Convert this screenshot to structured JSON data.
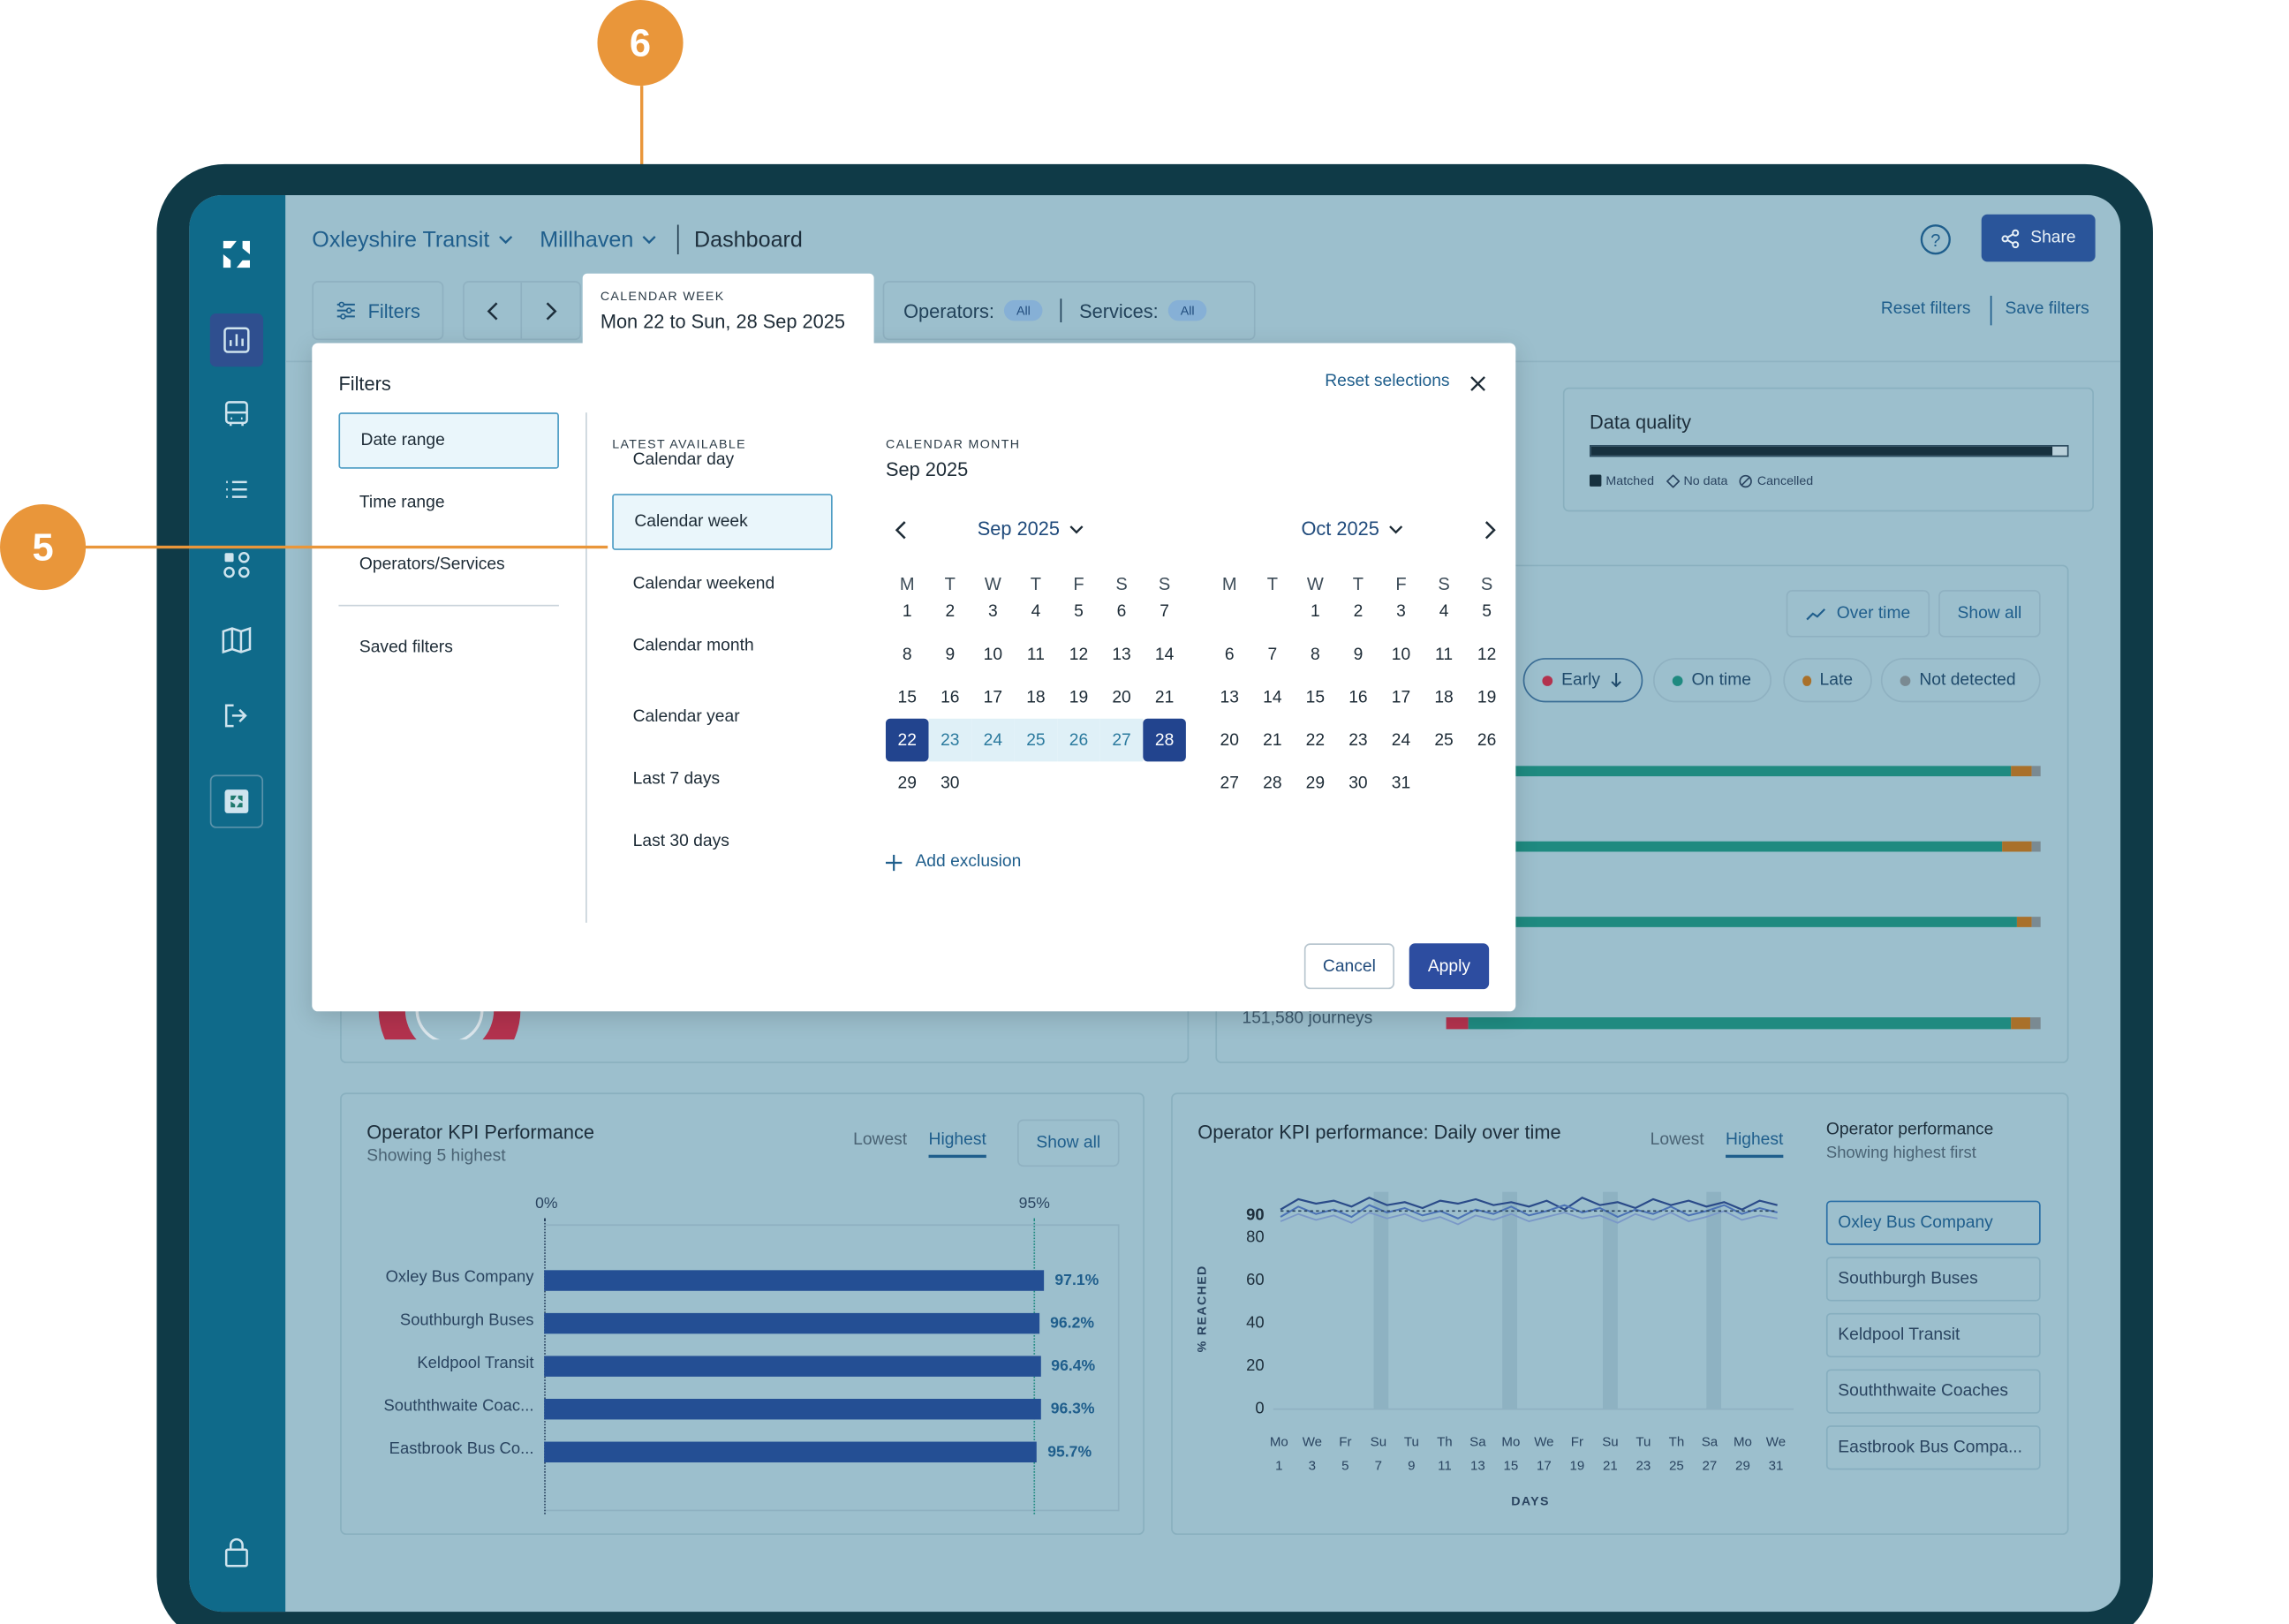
{
  "callouts": {
    "six": "6",
    "five": "5"
  },
  "header": {
    "org": "Oxleyshire Transit",
    "region": "Millhaven",
    "page": "Dashboard",
    "share": "Share"
  },
  "toolbar": {
    "filters": "Filters",
    "operators_label": "Operators:",
    "operators_val": "All",
    "services_label": "Services:",
    "services_val": "All",
    "reset": "Reset filters",
    "save": "Save filters"
  },
  "date_tab": {
    "caption": "CALENDAR WEEK",
    "value": "Mon 22 to Sun, 28 Sep 2025"
  },
  "modal": {
    "title": "Filters",
    "reset": "Reset selections",
    "left_tabs": [
      "Date range",
      "Time range",
      "Operators/Services"
    ],
    "saved": "Saved filters",
    "latest_caption": "LATEST AVAILABLE",
    "options": [
      "Calendar day",
      "Calendar week",
      "Calendar weekend",
      "Calendar month",
      "Calendar year",
      "Last 7 days",
      "Last 30 days"
    ],
    "month_caption": "CALENDAR MONTH",
    "month_value": "Sep 2025",
    "cal1_title": "Sep 2025",
    "cal2_title": "Oct 2025",
    "weekdays": [
      "M",
      "T",
      "W",
      "T",
      "F",
      "S",
      "S"
    ],
    "add_exclusion": "Add exclusion",
    "cancel": "Cancel",
    "apply": "Apply"
  },
  "data_quality": {
    "title": "Data quality",
    "matched_fraction": 0.97,
    "legend": [
      "Matched",
      "No data",
      "Cancelled"
    ]
  },
  "punctuality": {
    "over_time": "Over time",
    "show_all": "Show all",
    "pills": [
      "Early",
      "On time",
      "Late",
      "Not detected"
    ],
    "journeys": "151,580 journeys"
  },
  "kpi": {
    "title": "Operator KPI Performance",
    "subtitle": "Showing 5 highest",
    "lowest": "Lowest",
    "highest": "Highest",
    "show_all": "Show all",
    "axis_start": "0%",
    "axis_target": "95%"
  },
  "kpi_time": {
    "title": "Operator KPI performance: Daily over time",
    "lowest": "Lowest",
    "highest": "Highest",
    "ylabel": "% REACHED",
    "xlabel": "DAYS",
    "yticks": [
      "90",
      "80",
      "60",
      "40",
      "20",
      "0"
    ],
    "xdays": [
      "Mo",
      "We",
      "Fr",
      "Su",
      "Tu",
      "Th",
      "Sa",
      "Mo",
      "We",
      "Fr",
      "Su",
      "Tu",
      "Th",
      "Sa",
      "Mo",
      "We"
    ],
    "xnums": [
      "1",
      "3",
      "5",
      "7",
      "9",
      "11",
      "13",
      "15",
      "17",
      "19",
      "21",
      "23",
      "25",
      "27",
      "29",
      "31"
    ]
  },
  "op_perf": {
    "title": "Operator performance",
    "subtitle": "Showing highest first",
    "operators": [
      "Oxley Bus Company",
      "Southburgh Buses",
      "Keldpool Transit",
      "Souththwaite Coaches",
      "Eastbrook Bus Compa..."
    ]
  },
  "chart_data": {
    "type": "bar",
    "categories": [
      "Oxley Bus Company",
      "Southburgh Buses",
      "Keldpool Transit",
      "Souththwaite Coac...",
      "Eastbrook Bus Co..."
    ],
    "values": [
      97.1,
      96.2,
      96.4,
      96.3,
      95.7
    ],
    "labels": [
      "97.1%",
      "96.2%",
      "96.4%",
      "96.3%",
      "95.7%"
    ],
    "xlim": [
      0,
      100
    ],
    "target": 95
  },
  "colors": {
    "accent": "#244f94",
    "early": "#b3324e",
    "ontime": "#1f8a80",
    "late": "#a9702a",
    "nodetect": "#7a8a92"
  }
}
